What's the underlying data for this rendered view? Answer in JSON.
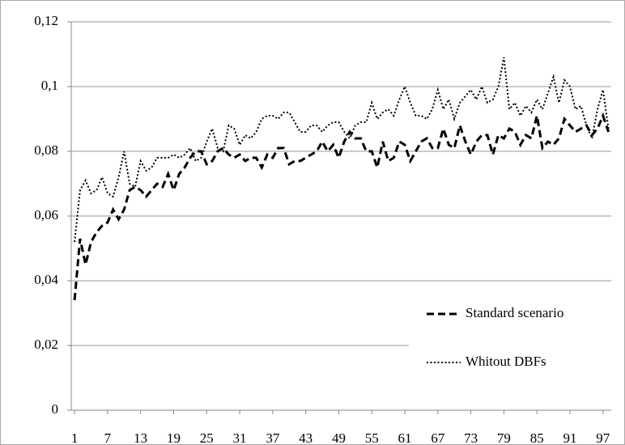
{
  "chart_data": {
    "type": "line",
    "x": [
      1,
      2,
      3,
      4,
      5,
      6,
      7,
      8,
      9,
      10,
      11,
      12,
      13,
      14,
      15,
      16,
      17,
      18,
      19,
      20,
      21,
      22,
      23,
      24,
      25,
      26,
      27,
      28,
      29,
      30,
      31,
      32,
      33,
      34,
      35,
      36,
      37,
      38,
      39,
      40,
      41,
      42,
      43,
      44,
      45,
      46,
      47,
      48,
      49,
      50,
      51,
      52,
      53,
      54,
      55,
      56,
      57,
      58,
      59,
      60,
      61,
      62,
      63,
      64,
      65,
      66,
      67,
      68,
      69,
      70,
      71,
      72,
      73,
      74,
      75,
      76,
      77,
      78,
      79,
      80,
      81,
      82,
      83,
      84,
      85,
      86,
      87,
      88,
      89,
      90,
      91,
      92,
      93,
      94,
      95,
      96,
      97,
      98
    ],
    "series": [
      {
        "name": "Standard scenario",
        "color": "#000000",
        "dash": "dashed",
        "values": [
          0.034,
          0.053,
          0.045,
          0.052,
          0.055,
          0.057,
          0.058,
          0.062,
          0.059,
          0.062,
          0.068,
          0.069,
          0.068,
          0.066,
          0.068,
          0.07,
          0.069,
          0.073,
          0.068,
          0.073,
          0.075,
          0.078,
          0.08,
          0.08,
          0.076,
          0.077,
          0.08,
          0.081,
          0.079,
          0.078,
          0.079,
          0.077,
          0.078,
          0.078,
          0.075,
          0.079,
          0.078,
          0.081,
          0.081,
          0.076,
          0.077,
          0.077,
          0.078,
          0.079,
          0.08,
          0.083,
          0.08,
          0.082,
          0.078,
          0.083,
          0.086,
          0.084,
          0.084,
          0.08,
          0.08,
          0.075,
          0.083,
          0.077,
          0.078,
          0.083,
          0.082,
          0.077,
          0.08,
          0.083,
          0.084,
          0.081,
          0.081,
          0.087,
          0.082,
          0.081,
          0.088,
          0.083,
          0.079,
          0.083,
          0.085,
          0.085,
          0.079,
          0.085,
          0.084,
          0.087,
          0.086,
          0.082,
          0.085,
          0.084,
          0.091,
          0.081,
          0.083,
          0.082,
          0.084,
          0.09,
          0.088,
          0.086,
          0.087,
          0.088,
          0.085,
          0.087,
          0.091,
          0.086
        ]
      },
      {
        "name": "Whitout DBFs",
        "color": "#000000",
        "dash": "dotted",
        "values": [
          0.052,
          0.068,
          0.071,
          0.067,
          0.068,
          0.072,
          0.067,
          0.066,
          0.072,
          0.08,
          0.07,
          0.069,
          0.077,
          0.074,
          0.075,
          0.078,
          0.078,
          0.078,
          0.079,
          0.078,
          0.079,
          0.081,
          0.077,
          0.078,
          0.083,
          0.087,
          0.081,
          0.08,
          0.088,
          0.087,
          0.082,
          0.085,
          0.084,
          0.086,
          0.09,
          0.091,
          0.091,
          0.09,
          0.092,
          0.092,
          0.089,
          0.086,
          0.086,
          0.088,
          0.088,
          0.086,
          0.088,
          0.089,
          0.089,
          0.086,
          0.084,
          0.088,
          0.089,
          0.089,
          0.095,
          0.09,
          0.092,
          0.093,
          0.091,
          0.096,
          0.1,
          0.095,
          0.091,
          0.091,
          0.09,
          0.093,
          0.099,
          0.093,
          0.096,
          0.09,
          0.095,
          0.097,
          0.099,
          0.096,
          0.1,
          0.095,
          0.096,
          0.1,
          0.109,
          0.093,
          0.095,
          0.091,
          0.094,
          0.092,
          0.096,
          0.093,
          0.098,
          0.103,
          0.095,
          0.102,
          0.1,
          0.093,
          0.094,
          0.088,
          0.084,
          0.093,
          0.099,
          0.087
        ]
      }
    ],
    "xlim": [
      0.4,
      98.5
    ],
    "xticks": [
      1,
      7,
      13,
      19,
      25,
      31,
      37,
      43,
      49,
      55,
      61,
      67,
      73,
      79,
      85,
      91,
      97
    ],
    "ylim": [
      0,
      0.12
    ],
    "yticks": [
      0,
      {
        "value": 0.02,
        "label": "0,02"
      },
      {
        "value": 0.04,
        "label": "0,04"
      },
      {
        "value": 0.06,
        "label": "0,06"
      },
      {
        "value": 0.08,
        "label": "0,08"
      },
      {
        "value": 0.1,
        "label": "0,1"
      },
      {
        "value": 0.12,
        "label": "0,12"
      }
    ],
    "grid": true,
    "legend": "lower right"
  }
}
